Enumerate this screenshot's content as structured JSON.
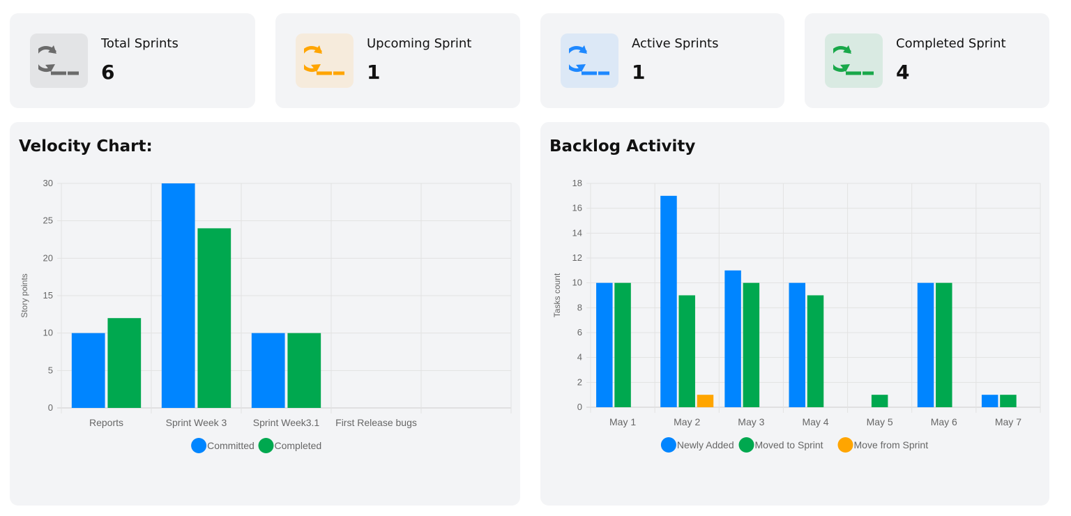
{
  "stats": [
    {
      "label": "Total Sprints",
      "value": "6",
      "icon": "sprint-loop-icon",
      "color": "#6b6b6b",
      "bg": "#e3e4e6"
    },
    {
      "label": "Upcoming Sprint",
      "value": "1",
      "icon": "sprint-loop-icon",
      "color": "#ffa500",
      "bg": "#f6ebdc"
    },
    {
      "label": "Active Sprints",
      "value": "1",
      "icon": "sprint-loop-icon",
      "color": "#1e88ff",
      "bg": "#dce8f6"
    },
    {
      "label": "Completed Sprint",
      "value": "4",
      "icon": "sprint-loop-icon",
      "color": "#19a84a",
      "bg": "#d9eae2"
    }
  ],
  "velocity": {
    "title": "Velocity Chart:"
  },
  "backlog": {
    "title": "Backlog Activity"
  },
  "chart_data": [
    {
      "type": "bar",
      "title": "",
      "ylabel": "Story points",
      "xlabel": "",
      "ylim": [
        0,
        30
      ],
      "yticks": [
        0,
        5,
        10,
        15,
        20,
        25,
        30
      ],
      "grid": true,
      "legend": "bottom",
      "categories": [
        "Reports",
        "Sprint Week 3",
        "Sprint Week3.1",
        "First Release bugs",
        ""
      ],
      "series": [
        {
          "name": "Committed",
          "color": "#0085ff",
          "values": [
            10,
            30,
            10,
            0,
            0
          ]
        },
        {
          "name": "Completed",
          "color": "#00a84f",
          "values": [
            12,
            24,
            10,
            0,
            0
          ]
        }
      ]
    },
    {
      "type": "bar",
      "title": "",
      "ylabel": "Tasks count",
      "xlabel": "",
      "ylim": [
        0,
        18
      ],
      "yticks": [
        0,
        2,
        4,
        6,
        8,
        10,
        12,
        14,
        16,
        18
      ],
      "grid": true,
      "legend": "bottom",
      "categories": [
        "May 1",
        "May 2",
        "May 3",
        "May 4",
        "May 5",
        "May 6",
        "May 7"
      ],
      "series": [
        {
          "name": "Newly Added",
          "color": "#0085ff",
          "values": [
            10,
            17,
            11,
            10,
            0,
            10,
            1
          ]
        },
        {
          "name": "Moved to Sprint",
          "color": "#00a84f",
          "values": [
            10,
            9,
            10,
            9,
            1,
            10,
            1
          ]
        },
        {
          "name": "Move from Sprint",
          "color": "#ffa500",
          "values": [
            0,
            1,
            0,
            0,
            0,
            0,
            0
          ]
        }
      ]
    }
  ]
}
